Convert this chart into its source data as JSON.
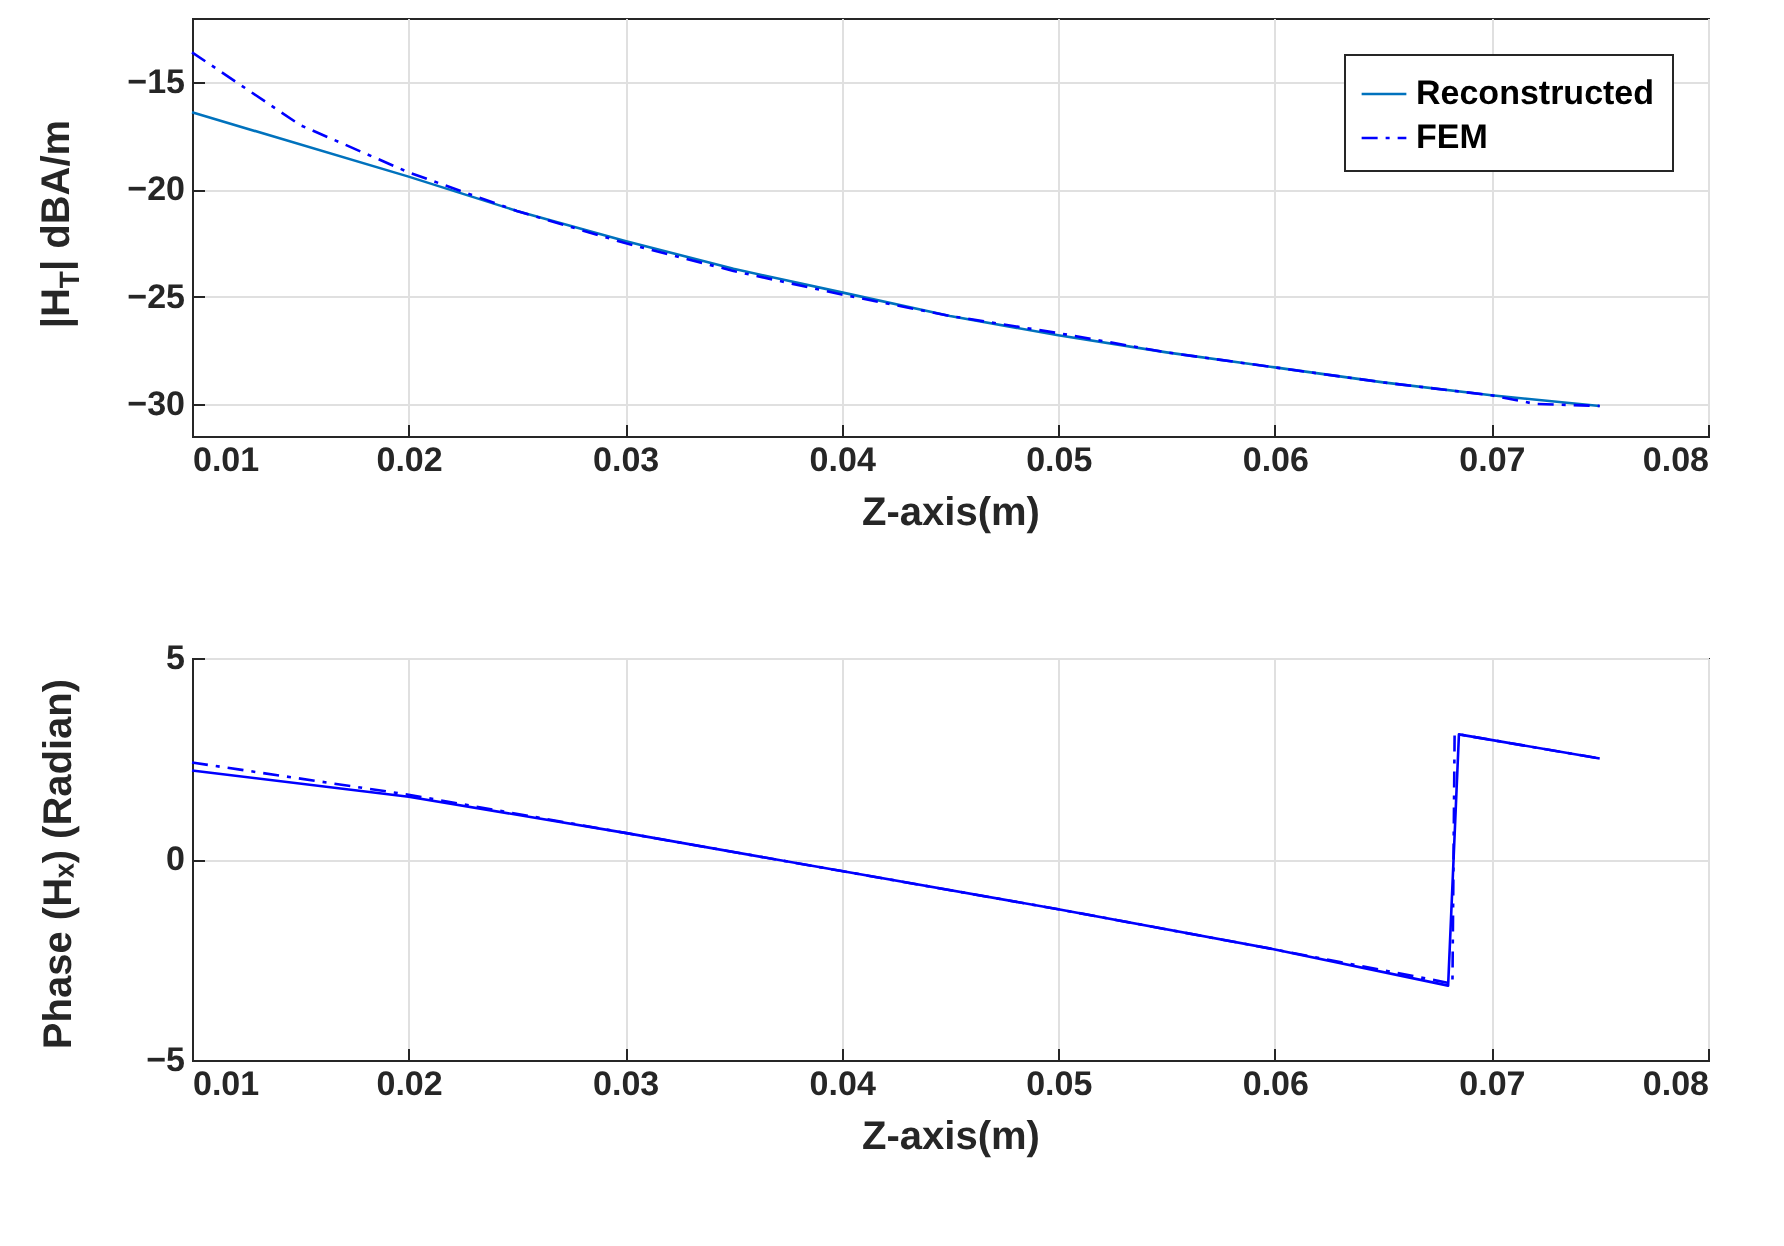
{
  "chart_data": [
    {
      "type": "line",
      "xlabel": "Z-axis(m)",
      "ylabel": "|H$_{T}$| dBA/m",
      "xlim": [
        0.01,
        0.08
      ],
      "xticks": [
        0.01,
        0.02,
        0.03,
        0.04,
        0.05,
        0.06,
        0.07,
        0.08
      ],
      "ylim": [
        -31.5,
        -12
      ],
      "yticks": [
        -15,
        -20,
        -25,
        -30
      ],
      "grid": true,
      "legend": "top right",
      "series": [
        {
          "name": "Reconstructed",
          "color": "#0072bd",
          "line_style": "solid",
          "x": [
            0.01,
            0.02,
            0.025,
            0.03,
            0.035,
            0.04,
            0.045,
            0.05,
            0.055,
            0.06,
            0.065,
            0.07,
            0.075
          ],
          "values": [
            -16.4,
            -19.4,
            -21.0,
            -22.4,
            -23.7,
            -24.8,
            -25.9,
            -26.8,
            -27.6,
            -28.3,
            -29.0,
            -29.6,
            -30.1
          ]
        },
        {
          "name": "FEM",
          "color": "#0000ff",
          "line_style": "dashed",
          "x": [
            0.01,
            0.015,
            0.02,
            0.025,
            0.03,
            0.035,
            0.04,
            0.045,
            0.05,
            0.055,
            0.06,
            0.065,
            0.07,
            0.072,
            0.075
          ],
          "values": [
            -13.6,
            -17.0,
            -19.2,
            -21.0,
            -22.5,
            -23.8,
            -24.9,
            -25.9,
            -26.7,
            -27.6,
            -28.3,
            -29.0,
            -29.6,
            -30.0,
            -30.1
          ]
        }
      ]
    },
    {
      "type": "line",
      "xlabel": "Z-axis(m)",
      "ylabel": "Phase (Hₓ) (Radian)",
      "xlim": [
        0.01,
        0.08
      ],
      "xticks": [
        0.01,
        0.02,
        0.03,
        0.04,
        0.05,
        0.06,
        0.07,
        0.08
      ],
      "ylim": [
        -5,
        5
      ],
      "yticks": [
        5,
        0,
        -5
      ],
      "grid": true,
      "series": [
        {
          "color": "#0000ff",
          "line_style": "solid",
          "x": [
            0.01,
            0.02,
            0.03,
            0.04,
            0.05,
            0.06,
            0.068,
            0.0685,
            0.075
          ],
          "values": [
            2.2,
            1.55,
            0.65,
            -0.3,
            -1.25,
            -2.25,
            -3.15,
            3.1,
            2.5
          ]
        },
        {
          "color": "#0000ff",
          "line_style": "dashed",
          "x": [
            0.01,
            0.02,
            0.03,
            0.04,
            0.05,
            0.06,
            0.0682,
            0.0683,
            0.0685,
            0.075
          ],
          "values": [
            2.4,
            1.6,
            0.65,
            -0.3,
            -1.25,
            -2.25,
            -3.1,
            3.1,
            3.1,
            2.5
          ]
        }
      ]
    }
  ]
}
